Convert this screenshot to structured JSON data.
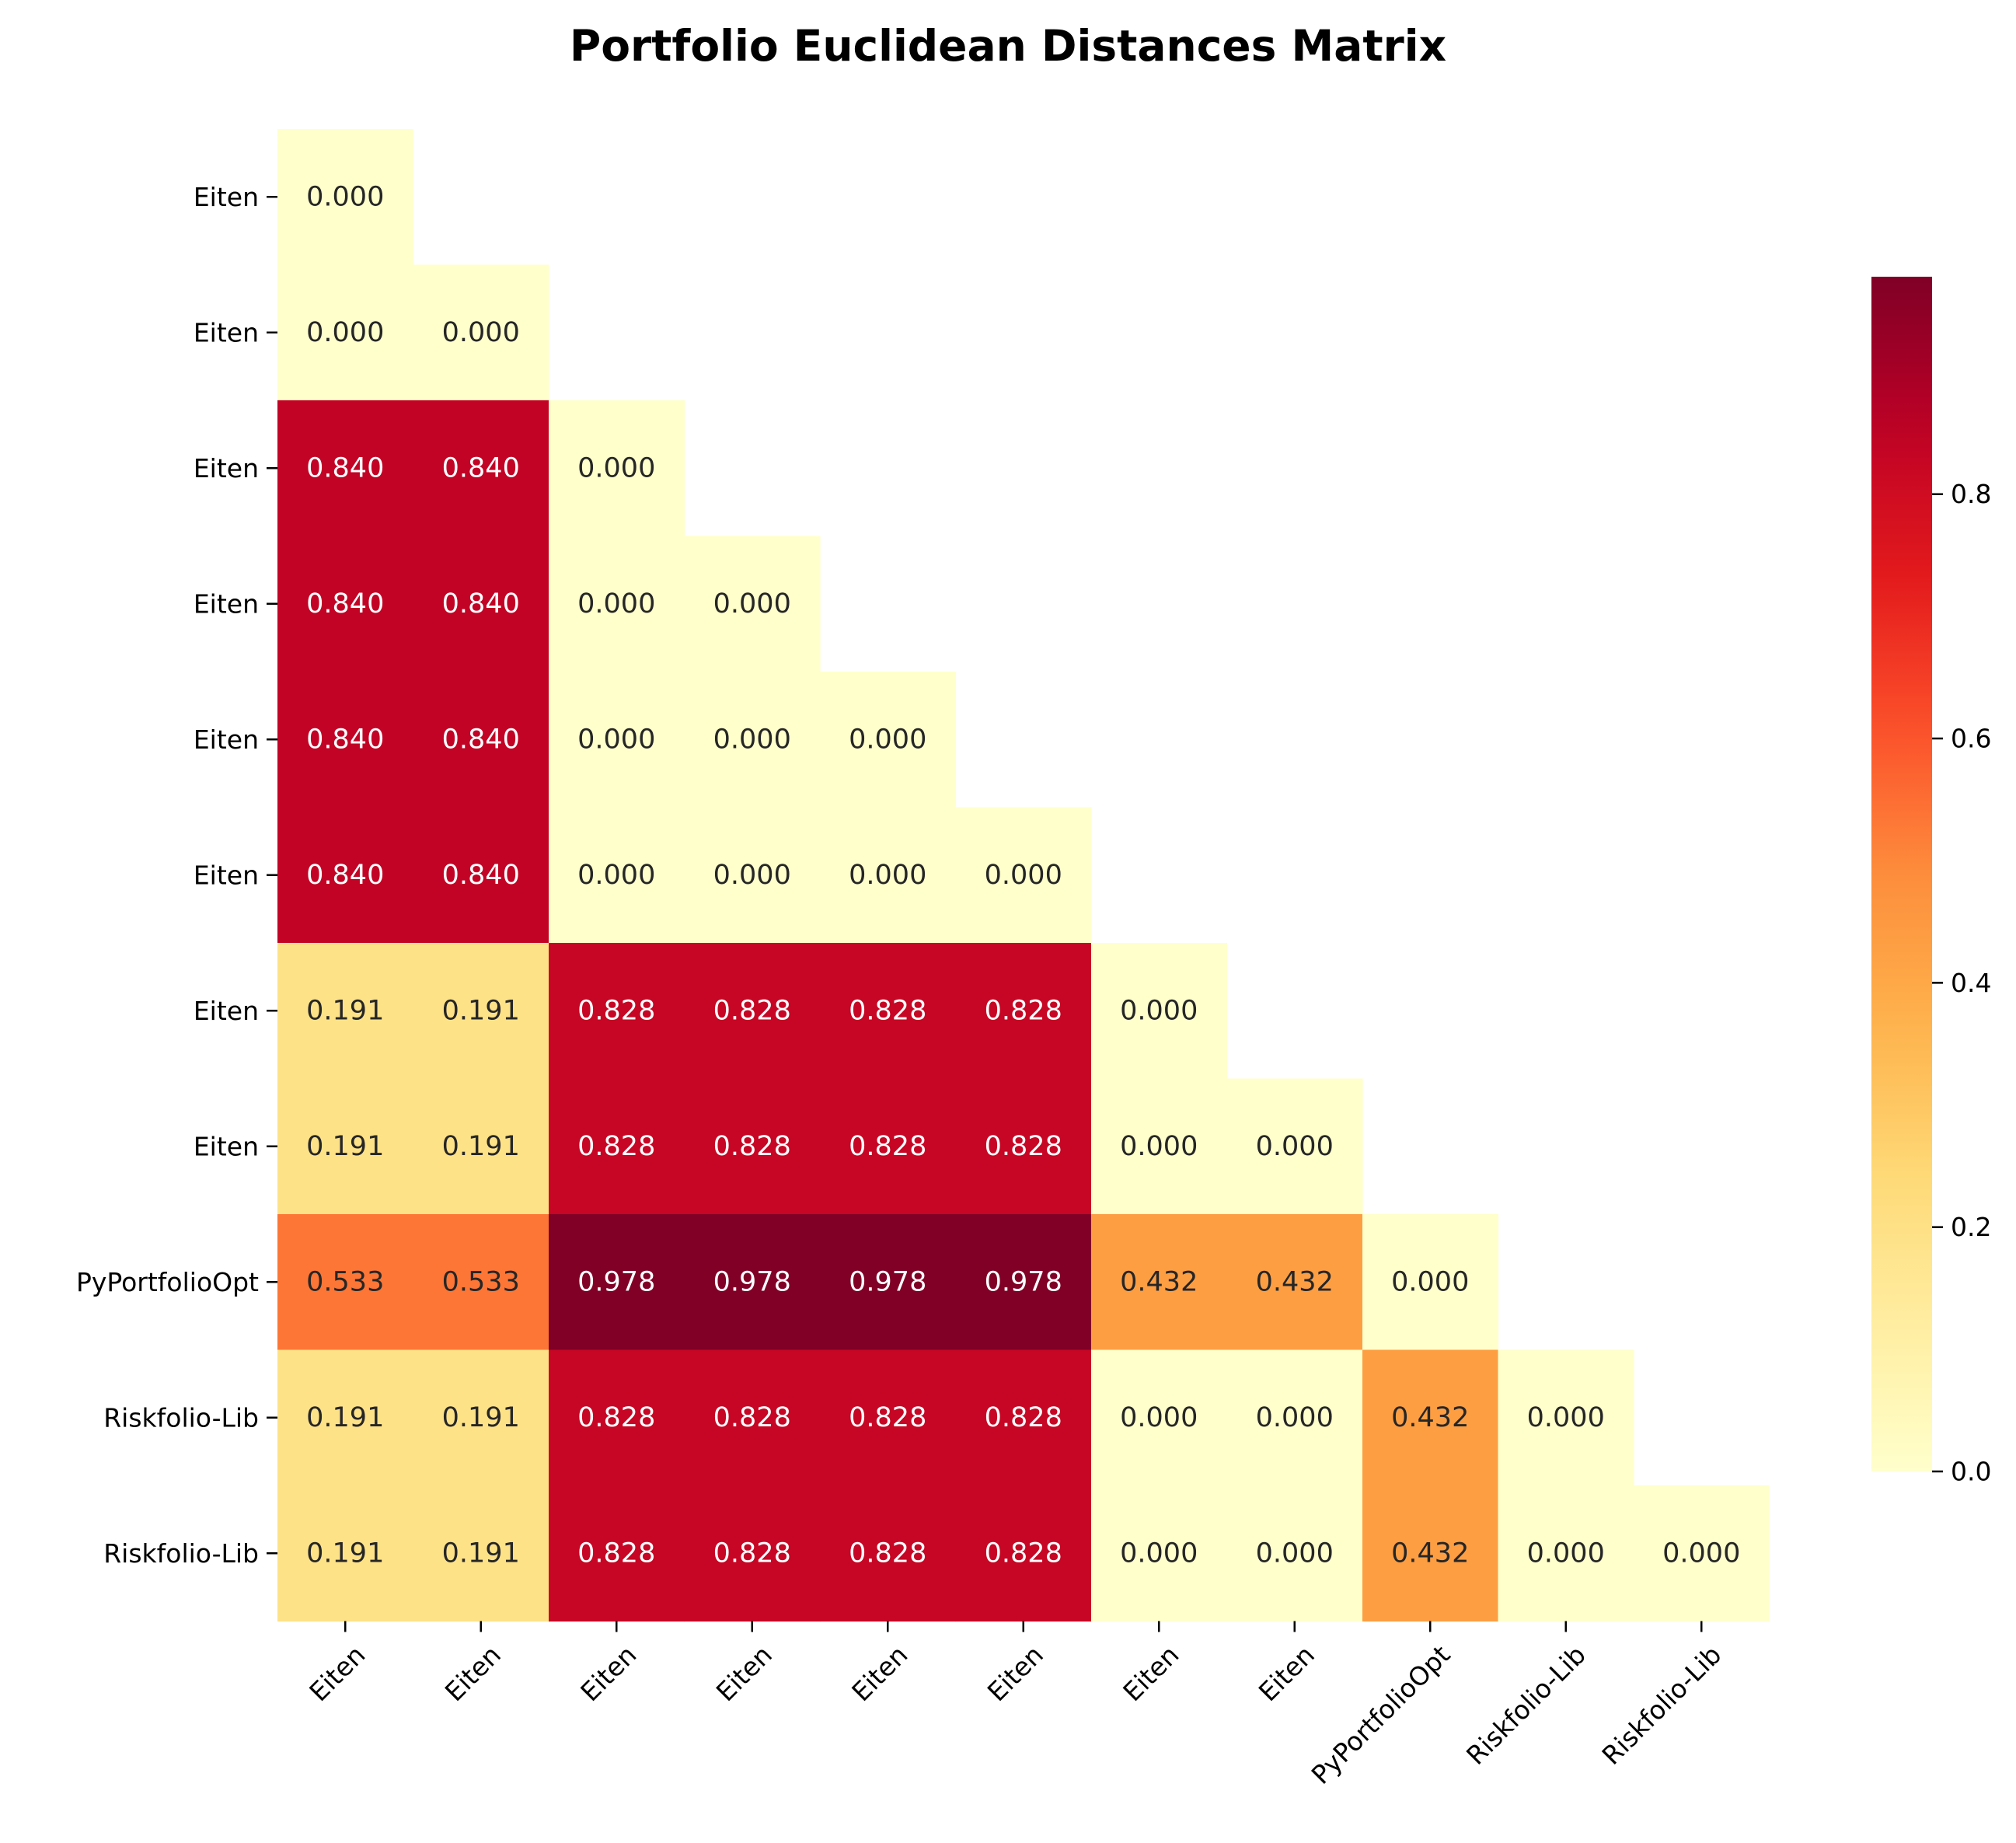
{
  "chart_data": {
    "type": "heatmap",
    "title": "Portfolio Euclidean Distances Matrix",
    "row_labels": [
      "Eiten",
      "Eiten",
      "Eiten",
      "Eiten",
      "Eiten",
      "Eiten",
      "Eiten",
      "Eiten",
      "PyPortfolioOpt",
      "Riskfolio-Lib",
      "Riskfolio-Lib"
    ],
    "col_labels": [
      "Eiten",
      "Eiten",
      "Eiten",
      "Eiten",
      "Eiten",
      "Eiten",
      "Eiten",
      "Eiten",
      "PyPortfolioOpt",
      "Riskfolio-Lib",
      "Riskfolio-Lib"
    ],
    "mask": "upper-triangle",
    "value_format": "3 decimals",
    "values": [
      [
        0.0
      ],
      [
        0.0,
        0.0
      ],
      [
        0.84,
        0.84,
        0.0
      ],
      [
        0.84,
        0.84,
        0.0,
        0.0
      ],
      [
        0.84,
        0.84,
        0.0,
        0.0,
        0.0
      ],
      [
        0.84,
        0.84,
        0.0,
        0.0,
        0.0,
        0.0
      ],
      [
        0.191,
        0.191,
        0.828,
        0.828,
        0.828,
        0.828,
        0.0
      ],
      [
        0.191,
        0.191,
        0.828,
        0.828,
        0.828,
        0.828,
        0.0,
        0.0
      ],
      [
        0.533,
        0.533,
        0.978,
        0.978,
        0.978,
        0.978,
        0.432,
        0.432,
        0.0
      ],
      [
        0.191,
        0.191,
        0.828,
        0.828,
        0.828,
        0.828,
        0.0,
        0.0,
        0.432,
        0.0
      ],
      [
        0.191,
        0.191,
        0.828,
        0.828,
        0.828,
        0.828,
        0.0,
        0.0,
        0.432,
        0.0,
        0.0
      ]
    ],
    "colorbar": {
      "colormap": "YlOrRd",
      "range": [
        0,
        0.978
      ],
      "ticks": [
        0.0,
        0.2,
        0.4,
        0.6,
        0.8
      ],
      "tick_labels": [
        "0.0",
        "0.2",
        "0.4",
        "0.6",
        "0.8"
      ],
      "position": "right"
    },
    "grid": false
  }
}
